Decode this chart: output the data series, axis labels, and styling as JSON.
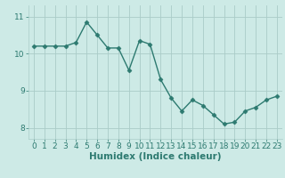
{
  "x": [
    0,
    1,
    2,
    3,
    4,
    5,
    6,
    7,
    8,
    9,
    10,
    11,
    12,
    13,
    14,
    15,
    16,
    17,
    18,
    19,
    20,
    21,
    22,
    23
  ],
  "y": [
    10.2,
    10.2,
    10.2,
    10.2,
    10.3,
    10.85,
    10.5,
    10.15,
    10.15,
    9.55,
    10.35,
    10.25,
    9.3,
    8.8,
    8.45,
    8.75,
    8.6,
    8.35,
    8.1,
    8.15,
    8.45,
    8.55,
    8.75,
    8.85
  ],
  "line_color": "#2d7a70",
  "marker": "D",
  "markersize": 2.5,
  "linewidth": 1.0,
  "xlabel": "Humidex (Indice chaleur)",
  "ylim": [
    7.7,
    11.3
  ],
  "xlim": [
    -0.5,
    23.5
  ],
  "yticks": [
    8,
    9,
    10,
    11
  ],
  "xticks": [
    0,
    1,
    2,
    3,
    4,
    5,
    6,
    7,
    8,
    9,
    10,
    11,
    12,
    13,
    14,
    15,
    16,
    17,
    18,
    19,
    20,
    21,
    22,
    23
  ],
  "bg_color": "#cdeae6",
  "grid_color": "#aaccc8",
  "tick_fontsize": 6.5,
  "label_fontsize": 7.5
}
